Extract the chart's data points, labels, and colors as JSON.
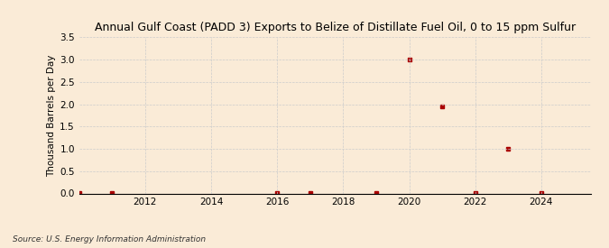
{
  "title": "Annual Gulf Coast (PADD 3) Exports to Belize of Distillate Fuel Oil, 0 to 15 ppm Sulfur",
  "ylabel": "Thousand Barrels per Day",
  "source": "Source: U.S. Energy Information Administration",
  "background_color": "#faebd7",
  "plot_bg_color": "#faebd7",
  "data_years": [
    2010,
    2011,
    2016,
    2017,
    2019,
    2020,
    2021,
    2022,
    2023,
    2024
  ],
  "data_values": [
    0.01,
    0.01,
    0.01,
    0.01,
    0.01,
    3.0,
    1.95,
    0.01,
    1.0,
    0.01
  ],
  "marker_color": "#aa0000",
  "marker_size": 3,
  "xlim": [
    2010.0,
    2025.5
  ],
  "ylim": [
    0.0,
    3.5
  ],
  "yticks": [
    0.0,
    0.5,
    1.0,
    1.5,
    2.0,
    2.5,
    3.0,
    3.5
  ],
  "xticks": [
    2012,
    2014,
    2016,
    2018,
    2020,
    2022,
    2024
  ],
  "grid_color": "#cccccc",
  "title_fontsize": 9,
  "label_fontsize": 7.5,
  "tick_fontsize": 7.5,
  "source_fontsize": 6.5
}
